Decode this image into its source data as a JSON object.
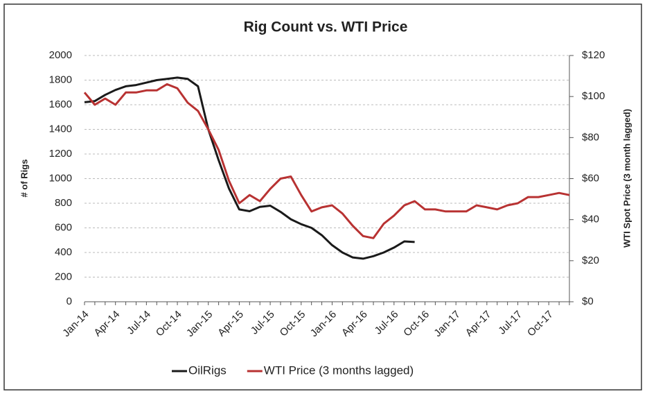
{
  "chart_data": {
    "type": "line",
    "title": "Rig Count vs. WTI Price",
    "y_label": "# of Rigs",
    "y2_label": "WTI Spot Price (3 month lagged)",
    "categories": [
      "Jan-14",
      null,
      null,
      "Apr-14",
      null,
      null,
      "Jul-14",
      null,
      null,
      "Oct-14",
      null,
      null,
      "Jan-15",
      null,
      null,
      "Apr-15",
      null,
      null,
      "Jul-15",
      null,
      null,
      "Oct-15",
      null,
      null,
      "Jan-16",
      null,
      null,
      "Apr-16",
      null,
      null,
      "Jul-16",
      null,
      null,
      "Oct-16",
      null,
      null,
      "Jan-17",
      null,
      null,
      "Apr-17",
      null,
      null,
      "Jul-17",
      null,
      null,
      "Oct-17",
      null,
      null
    ],
    "series": [
      {
        "name": "OilRigs",
        "color": "#1a1a1a",
        "axis": "y",
        "values": [
          1620,
          1630,
          1680,
          1720,
          1750,
          1760,
          1780,
          1800,
          1810,
          1820,
          1810,
          1750,
          1400,
          1150,
          920,
          750,
          735,
          770,
          780,
          730,
          670,
          630,
          600,
          540,
          460,
          400,
          360,
          350,
          370,
          400,
          440,
          490,
          485,
          null,
          null,
          null,
          null,
          null,
          null,
          null,
          null,
          null,
          null,
          null,
          null,
          null,
          null,
          null
        ]
      },
      {
        "name": "WTI Price (3 months lagged)",
        "color": "#b83232",
        "axis": "y2",
        "values": [
          102,
          96,
          99,
          96,
          102,
          102,
          103,
          103,
          106,
          104,
          97,
          93,
          84,
          74,
          59,
          48,
          52,
          49,
          55,
          60,
          61,
          52,
          44,
          46,
          47,
          43,
          37,
          32,
          31,
          38,
          42,
          47,
          49,
          45,
          45,
          44,
          44,
          44,
          47,
          46,
          45,
          47,
          48,
          51,
          51,
          52,
          53,
          52
        ]
      }
    ],
    "ylim": [
      0,
      2000
    ],
    "yticks": [
      0,
      200,
      400,
      600,
      800,
      1000,
      1200,
      1400,
      1600,
      1800,
      2000
    ],
    "y2lim": [
      0,
      120
    ],
    "y2ticks": [
      {
        "value": 0,
        "label": "$0"
      },
      {
        "value": 20,
        "label": "$20"
      },
      {
        "value": 40,
        "label": "$40"
      },
      {
        "value": 60,
        "label": "$60"
      },
      {
        "value": 80,
        "label": "$80"
      },
      {
        "value": 100,
        "label": "$100"
      },
      {
        "value": 120,
        "label": "$120"
      }
    ],
    "grid": true,
    "legend": "bottom"
  }
}
